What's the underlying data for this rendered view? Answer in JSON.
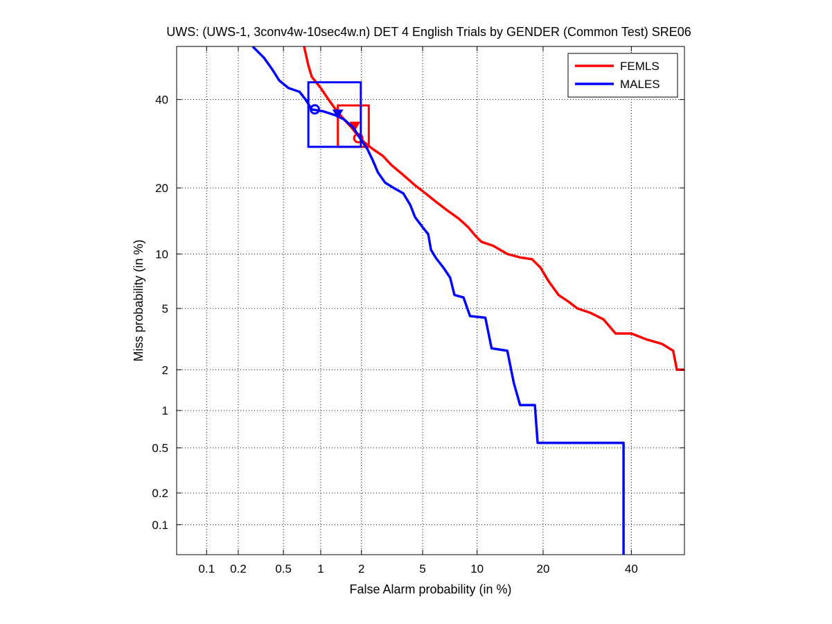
{
  "chart_data": {
    "type": "line",
    "title": "UWS: (UWS-1, 3conv4w-10sec4w.n) DET 4 English Trials by GENDER (Common Test) SRE06",
    "xlabel": "False Alarm probability (in %)",
    "ylabel": "Miss probability (in %)",
    "x_scale": "probit",
    "y_scale": "probit",
    "xlim": [
      0.05,
      54
    ],
    "ylim": [
      0.05,
      54
    ],
    "x_ticks": [
      0.1,
      0.2,
      0.5,
      1,
      2,
      5,
      10,
      20,
      40
    ],
    "x_tick_labels": [
      "0.1",
      "0.2",
      "0.5",
      "1",
      "2",
      "5",
      "10",
      "20",
      "40"
    ],
    "y_ticks": [
      0.1,
      0.2,
      0.5,
      1,
      2,
      5,
      10,
      20,
      40
    ],
    "y_tick_labels": [
      "0.1",
      "0.2",
      "0.5",
      "1",
      "2",
      "5",
      "10",
      "20",
      "40"
    ],
    "grid": true,
    "legend_position": "top-right",
    "series": [
      {
        "name": "FEMLS",
        "color": "#ff0000",
        "points": [
          [
            0.74,
            54
          ],
          [
            0.8,
            49
          ],
          [
            0.85,
            46
          ],
          [
            1.0,
            43
          ],
          [
            1.15,
            40
          ],
          [
            1.3,
            37.5
          ],
          [
            1.5,
            35
          ],
          [
            1.7,
            33
          ],
          [
            1.9,
            31
          ],
          [
            2.1,
            29.5
          ],
          [
            2.4,
            28
          ],
          [
            2.8,
            26.5
          ],
          [
            3.2,
            24.5
          ],
          [
            3.8,
            22.5
          ],
          [
            4.5,
            20.5
          ],
          [
            5.2,
            19
          ],
          [
            6.0,
            17.5
          ],
          [
            7.0,
            16
          ],
          [
            8.0,
            14.8
          ],
          [
            9.0,
            13.5
          ],
          [
            9.8,
            12.3
          ],
          [
            10.5,
            11.5
          ],
          [
            12.0,
            11.0
          ],
          [
            14.0,
            10.0
          ],
          [
            16.0,
            9.6
          ],
          [
            18.0,
            9.4
          ],
          [
            19.5,
            8.5
          ],
          [
            21.0,
            7.2
          ],
          [
            23.0,
            6.0
          ],
          [
            25.0,
            5.5
          ],
          [
            27.0,
            5.0
          ],
          [
            30.0,
            4.7
          ],
          [
            33.0,
            4.3
          ],
          [
            36.0,
            3.5
          ],
          [
            40.0,
            3.5
          ],
          [
            44.0,
            3.2
          ],
          [
            48.0,
            3.0
          ],
          [
            51.0,
            2.7
          ],
          [
            52.0,
            2.0
          ],
          [
            54.0,
            2.0
          ]
        ],
        "min_dcf_point": [
          1.9,
          30.5
        ],
        "actual_dcf_point": [
          1.8,
          33.5
        ],
        "confidence_box": {
          "x_range": [
            1.35,
            2.25
          ],
          "y_range": [
            28.5,
            38.5
          ]
        }
      },
      {
        "name": "MALES",
        "color": "#0000ff",
        "points": [
          [
            0.27,
            54
          ],
          [
            0.34,
            51
          ],
          [
            0.4,
            48
          ],
          [
            0.46,
            45
          ],
          [
            0.55,
            43
          ],
          [
            0.68,
            42
          ],
          [
            0.76,
            40
          ],
          [
            0.85,
            37.5
          ],
          [
            1.05,
            37
          ],
          [
            1.3,
            36
          ],
          [
            1.5,
            35
          ],
          [
            1.75,
            33
          ],
          [
            2.0,
            30
          ],
          [
            2.2,
            28
          ],
          [
            2.4,
            25.5
          ],
          [
            2.6,
            23
          ],
          [
            2.9,
            21
          ],
          [
            3.3,
            20
          ],
          [
            3.8,
            19
          ],
          [
            4.2,
            17
          ],
          [
            4.5,
            15
          ],
          [
            5.0,
            13.5
          ],
          [
            5.4,
            12.5
          ],
          [
            5.6,
            10.5
          ],
          [
            6.0,
            9.5
          ],
          [
            6.6,
            8.5
          ],
          [
            7.2,
            7.5
          ],
          [
            7.6,
            6.0
          ],
          [
            8.5,
            5.8
          ],
          [
            9.2,
            4.5
          ],
          [
            11.0,
            4.4
          ],
          [
            11.8,
            2.8
          ],
          [
            14.0,
            2.7
          ],
          [
            15.0,
            1.6
          ],
          [
            16.0,
            1.1
          ],
          [
            18.5,
            1.1
          ],
          [
            19.0,
            0.55
          ],
          [
            38.0,
            0.55
          ],
          [
            38.0,
            0.05
          ]
        ],
        "min_dcf_point": [
          0.9,
          37.5
        ],
        "actual_dcf_point": [
          1.35,
          36.5
        ],
        "confidence_box": {
          "x_range": [
            0.8,
            1.98
          ],
          "y_range": [
            28.5,
            44.5
          ]
        }
      }
    ]
  }
}
